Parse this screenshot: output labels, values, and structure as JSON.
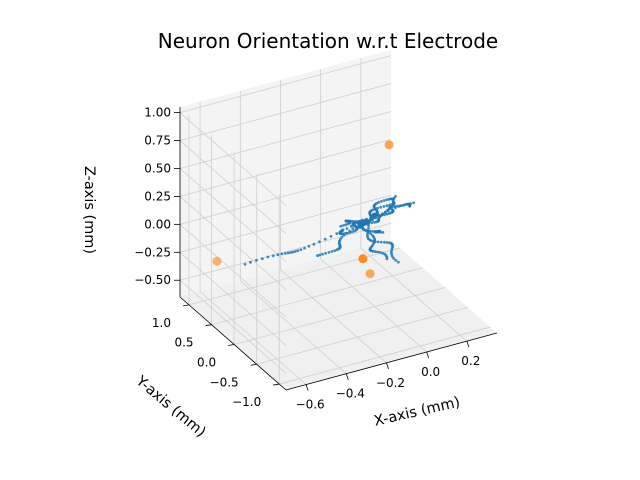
{
  "chart_data": {
    "type": "scatter3d",
    "title": "Neuron Orientation w.r.t Electrode",
    "xlabel": "X-axis (mm)",
    "ylabel": "Y-axis (mm)",
    "zlabel": "Z-axis (mm)",
    "xlim": [
      -0.7,
      0.35
    ],
    "ylim": [
      -1.15,
      1.2
    ],
    "zlim": [
      -0.65,
      1.05
    ],
    "xticks": [
      {
        "v": -0.6,
        "label": "−0.6"
      },
      {
        "v": -0.4,
        "label": "−0.4"
      },
      {
        "v": -0.2,
        "label": "−0.2"
      },
      {
        "v": 0.0,
        "label": "0.0"
      },
      {
        "v": 0.2,
        "label": "0.2"
      }
    ],
    "yticks": [
      {
        "v": 1.0,
        "label": "1.0"
      },
      {
        "v": 0.5,
        "label": "0.5"
      },
      {
        "v": 0.0,
        "label": "0.0"
      },
      {
        "v": -0.5,
        "label": "−0.5"
      },
      {
        "v": -1.0,
        "label": "−1.0"
      }
    ],
    "zticks": [
      {
        "v": 1.0,
        "label": "1.00"
      },
      {
        "v": 0.75,
        "label": "0.75"
      },
      {
        "v": 0.5,
        "label": "0.50"
      },
      {
        "v": 0.25,
        "label": "0.25"
      },
      {
        "v": 0.0,
        "label": "0.00"
      },
      {
        "v": -0.25,
        "label": "−0.25"
      },
      {
        "v": -0.5,
        "label": "−0.50"
      }
    ],
    "grid": true,
    "colors": {
      "neuron": "#1f77b4",
      "electrode": "#ff7f0e",
      "pane_side": "#ececec",
      "pane_back": "#f4f4f4",
      "pane_floor": "#f0f0f0",
      "grid": "#cfcfcf"
    },
    "series": [
      {
        "marker": "electrode",
        "points": [
          {
            "x": -0.55,
            "y": 1.05,
            "z": -0.35
          },
          {
            "x": 0.15,
            "y": 0.35,
            "z": 0.6
          },
          {
            "x": -0.25,
            "y": -0.85,
            "z": 0.2
          },
          {
            "x": 0.1,
            "y": 0.55,
            "z": -0.6
          }
        ]
      },
      {
        "marker": "neuron-tracks",
        "center": {
          "x": -0.05,
          "y": 0.05,
          "z": 0.1
        },
        "branches": [
          {
            "end": {
              "x": -0.55,
              "y": 0.35,
              "z": -0.15
            }
          },
          {
            "end": {
              "x": 0.2,
              "y": 0.3,
              "z": -0.45
            }
          },
          {
            "end": {
              "x": 0.25,
              "y": 0.35,
              "z": 0.05
            }
          },
          {
            "end": {
              "x": 0.0,
              "y": -0.35,
              "z": 0.35
            }
          },
          {
            "end": {
              "x": -0.25,
              "y": 0.05,
              "z": -0.1
            }
          },
          {
            "end": {
              "x": 0.1,
              "y": 0.25,
              "z": -0.15
            }
          },
          {
            "end": {
              "x": 0.05,
              "y": -0.05,
              "z": 0.3
            }
          },
          {
            "end": {
              "x": -0.2,
              "y": -0.15,
              "z": 0.25
            }
          },
          {
            "end": {
              "x": 0.15,
              "y": 0.1,
              "z": 0.25
            }
          },
          {
            "end": {
              "x": -0.1,
              "y": 0.3,
              "z": -0.05
            }
          },
          {
            "end": {
              "x": 0.05,
              "y": 0.05,
              "z": -0.3
            }
          },
          {
            "end": {
              "x": 0.2,
              "y": 0.05,
              "z": 0.15
            }
          }
        ]
      }
    ]
  }
}
